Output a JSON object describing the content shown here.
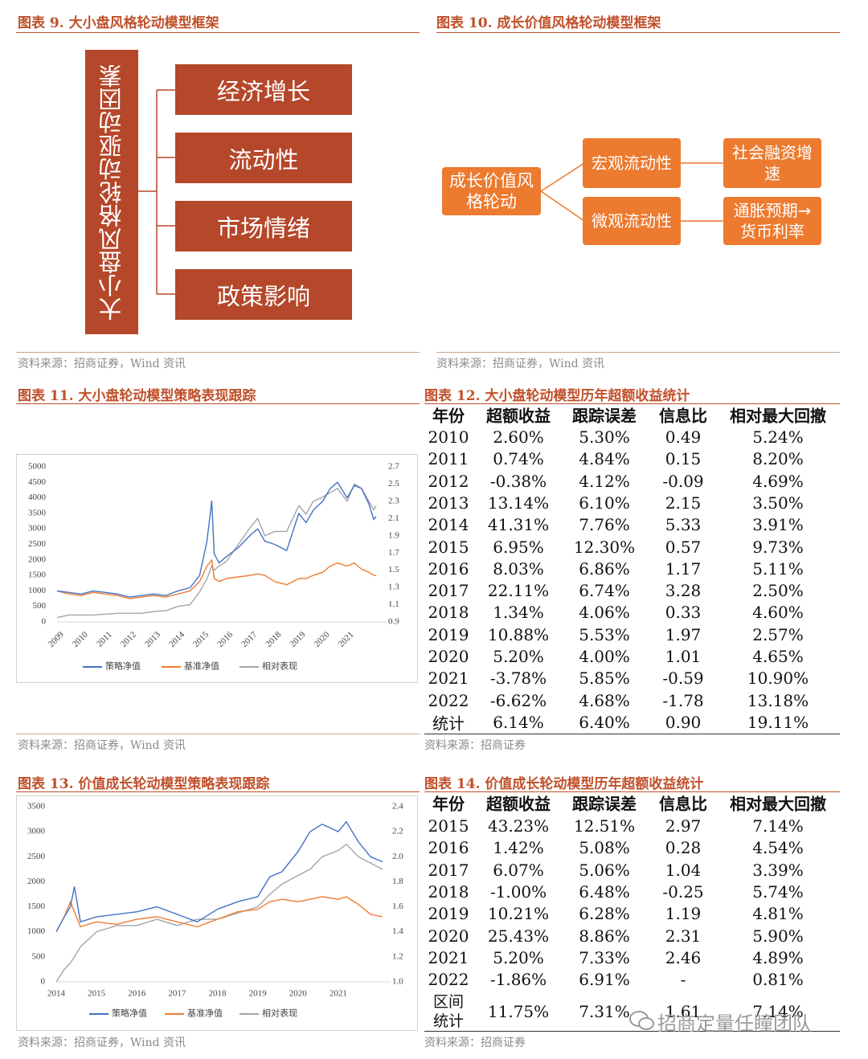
{
  "figure9": {
    "title": "图表 9. 大小盘风格轮动模型框架",
    "root": "大小盘风格轮动驱动因素",
    "factors": [
      "经济增长",
      "流动性",
      "市场情绪",
      "政策影响"
    ],
    "source": "资料来源：招商证券，Wind 资讯"
  },
  "figure10": {
    "title": "图表 10. 成长价值风格轮动模型框架",
    "root": "成长价值风格轮动",
    "nodes": [
      "宏观流动性",
      "微观流动性"
    ],
    "leaves": [
      "社会融资增速",
      "通胀预期→货币利率"
    ],
    "source": "资料来源：招商证券，Wind 资讯"
  },
  "figure11": {
    "title": "图表 11. 大小盘轮动模型策略表现跟踪",
    "source": "资料来源：招商证券，Wind 资讯"
  },
  "figure12": {
    "title": "图表 12. 大小盘轮动模型历年超额收益统计",
    "header": [
      "年份",
      "超额收益",
      "跟踪误差",
      "信息比",
      "相对最大回撤"
    ],
    "rows": [
      [
        "2010",
        "2.60%",
        "5.30%",
        "0.49",
        "5.24%"
      ],
      [
        "2011",
        "0.74%",
        "4.84%",
        "0.15",
        "8.20%"
      ],
      [
        "2012",
        "-0.38%",
        "4.12%",
        "-0.09",
        "4.69%"
      ],
      [
        "2013",
        "13.14%",
        "6.10%",
        "2.15",
        "3.50%"
      ],
      [
        "2014",
        "41.31%",
        "7.76%",
        "5.33",
        "3.91%"
      ],
      [
        "2015",
        "6.95%",
        "12.30%",
        "0.57",
        "9.73%"
      ],
      [
        "2016",
        "8.03%",
        "6.86%",
        "1.17",
        "5.11%"
      ],
      [
        "2017",
        "22.11%",
        "6.74%",
        "3.28",
        "2.50%"
      ],
      [
        "2018",
        "1.34%",
        "4.06%",
        "0.33",
        "4.60%"
      ],
      [
        "2019",
        "10.88%",
        "5.53%",
        "1.97",
        "2.57%"
      ],
      [
        "2020",
        "5.20%",
        "4.00%",
        "1.01",
        "4.65%"
      ],
      [
        "2021",
        "-3.78%",
        "5.85%",
        "-0.59",
        "10.90%"
      ],
      [
        "2022",
        "-6.62%",
        "4.68%",
        "-1.78",
        "13.18%"
      ],
      [
        "统计",
        "6.14%",
        "6.40%",
        "0.90",
        "19.11%"
      ]
    ],
    "source": "资料来源：招商证券"
  },
  "figure13": {
    "title": "图表 13. 价值成长轮动模型策略表现跟踪",
    "source": "资料来源：招商证券，Wind 资讯"
  },
  "figure14": {
    "title": "图表 14. 价值成长轮动模型历年超额收益统计",
    "header": [
      "年份",
      "超额收益",
      "跟踪误差",
      "信息比",
      "相对最大回撤"
    ],
    "rows": [
      [
        "2015",
        "43.23%",
        "12.51%",
        "2.97",
        "7.14%"
      ],
      [
        "2016",
        "1.42%",
        "5.08%",
        "0.28",
        "4.54%"
      ],
      [
        "2017",
        "6.07%",
        "5.06%",
        "1.04",
        "3.39%"
      ],
      [
        "2018",
        "-1.00%",
        "6.48%",
        "-0.25",
        "5.74%"
      ],
      [
        "2019",
        "10.21%",
        "6.28%",
        "1.19",
        "4.81%"
      ],
      [
        "2020",
        "25.43%",
        "8.86%",
        "2.31",
        "5.90%"
      ],
      [
        "2021",
        "5.20%",
        "7.33%",
        "2.46",
        "4.89%"
      ],
      [
        "2022",
        "-1.86%",
        "6.91%",
        "-",
        "0.81%"
      ],
      [
        "区间统计",
        "11.75%",
        "7.31%",
        "1.61",
        "7.14%"
      ]
    ],
    "source": "资料来源：招商证券"
  },
  "watermark": "招商定量任瞳团队",
  "chart_data": [
    {
      "type": "line",
      "xlim": [
        2009,
        2022.3
      ],
      "xticks": [
        2009,
        2010,
        2011,
        2012,
        2013,
        2014,
        2015,
        2016,
        2017,
        2018,
        2019,
        2020,
        2021
      ],
      "ylim": [
        0,
        5000
      ],
      "yticks": [
        0,
        500,
        1000,
        1500,
        2000,
        2500,
        3000,
        3500,
        4000,
        4500,
        5000
      ],
      "y2lim": [
        0.9,
        2.7
      ],
      "y2ticks": [
        0.9,
        1.1,
        1.3,
        1.5,
        1.7,
        1.9,
        2.1,
        2.3,
        2.5,
        2.7
      ],
      "grid": false,
      "legend": "bottom",
      "x": [
        2009,
        2009.5,
        2010,
        2010.5,
        2011,
        2011.5,
        2012,
        2012.5,
        2013,
        2013.5,
        2014,
        2014.5,
        2014.9,
        2015.2,
        2015.4,
        2015.5,
        2015.7,
        2016,
        2016.5,
        2017,
        2017.3,
        2017.6,
        2018,
        2018.5,
        2019,
        2019.3,
        2019.6,
        2020,
        2020.3,
        2020.6,
        2021,
        2021.3,
        2021.6,
        2021.9,
        2022.1,
        2022.2
      ],
      "series": [
        {
          "name": "策略净值",
          "color": "#4472c4",
          "values": [
            1000,
            950,
            900,
            1000,
            950,
            900,
            800,
            850,
            900,
            850,
            1000,
            1100,
            1500,
            2600,
            3900,
            2200,
            1900,
            2100,
            2400,
            2800,
            3000,
            2600,
            2500,
            2300,
            3500,
            3200,
            3600,
            3900,
            4300,
            4500,
            4000,
            4400,
            4300,
            3800,
            3300,
            3400
          ]
        },
        {
          "name": "基准净值",
          "color": "#ed7d31",
          "values": [
            1000,
            900,
            850,
            950,
            900,
            850,
            750,
            800,
            850,
            800,
            900,
            1000,
            1300,
            1800,
            2000,
            1400,
            1300,
            1400,
            1450,
            1500,
            1550,
            1500,
            1300,
            1200,
            1400,
            1400,
            1500,
            1600,
            1800,
            1900,
            1800,
            1900,
            1700,
            1600,
            1500,
            1500
          ]
        },
        {
          "name": "相对表现",
          "color": "#a5a5a5",
          "axis": "y2",
          "values": [
            0.95,
            0.98,
            0.98,
            0.98,
            0.99,
            1.0,
            1.0,
            1.0,
            1.02,
            1.03,
            1.08,
            1.1,
            1.25,
            1.4,
            1.55,
            1.5,
            1.55,
            1.6,
            1.8,
            2.0,
            2.1,
            1.9,
            1.95,
            1.95,
            2.25,
            2.15,
            2.3,
            2.35,
            2.4,
            2.45,
            2.3,
            2.5,
            2.45,
            2.3,
            2.2,
            2.25
          ]
        }
      ]
    },
    {
      "type": "line",
      "xlim": [
        2014,
        2022.1
      ],
      "xticks": [
        2014,
        2015,
        2016,
        2017,
        2018,
        2019,
        2020,
        2021
      ],
      "ylim": [
        0,
        3500
      ],
      "yticks": [
        0,
        500,
        1000,
        1500,
        2000,
        2500,
        3000,
        3500
      ],
      "y2lim": [
        1.0,
        2.4
      ],
      "y2ticks": [
        {
          "value": 1.0,
          "label": "1.0"
        },
        1.2,
        1.4,
        1.6,
        1.8,
        {
          "value": 2.0,
          "label": "2.0"
        },
        2.2,
        2.4
      ],
      "grid": false,
      "legend": "bottom",
      "x": [
        2014,
        2014.2,
        2014.35,
        2014.45,
        2014.6,
        2015,
        2015.5,
        2016,
        2016.5,
        2017,
        2017.5,
        2018,
        2018.5,
        2019,
        2019.3,
        2019.6,
        2020,
        2020.3,
        2020.6,
        2021,
        2021.2,
        2021.5,
        2021.8,
        2022.1
      ],
      "series": [
        {
          "name": "策略净值",
          "color": "#4472c4",
          "values": [
            1000,
            1300,
            1500,
            1900,
            1200,
            1300,
            1350,
            1400,
            1500,
            1350,
            1200,
            1450,
            1600,
            1700,
            2100,
            2200,
            2600,
            3000,
            3150,
            3000,
            3200,
            2800,
            2500,
            2400
          ]
        },
        {
          "name": "基准净值",
          "color": "#ed7d31",
          "values": [
            1000,
            1300,
            1600,
            1400,
            1100,
            1200,
            1150,
            1250,
            1300,
            1200,
            1100,
            1250,
            1400,
            1450,
            1600,
            1650,
            1600,
            1650,
            1700,
            1650,
            1700,
            1550,
            1350,
            1300
          ]
        },
        {
          "name": "相对表现",
          "color": "#a5a5a5",
          "axis": "y2",
          "values": [
            1.0,
            1.1,
            1.15,
            1.2,
            1.28,
            1.4,
            1.45,
            1.45,
            1.5,
            1.45,
            1.5,
            1.5,
            1.55,
            1.6,
            1.7,
            1.78,
            1.85,
            1.9,
            2.0,
            2.05,
            2.1,
            2.0,
            1.95,
            1.9
          ]
        }
      ]
    }
  ]
}
